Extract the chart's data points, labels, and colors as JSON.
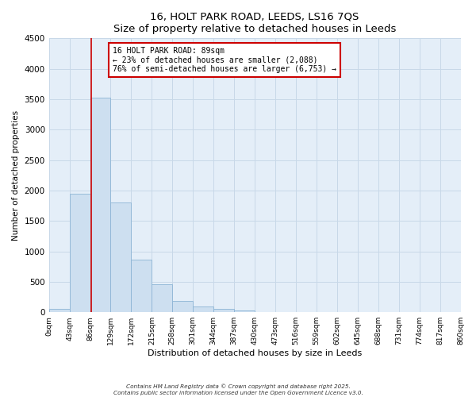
{
  "title": "16, HOLT PARK ROAD, LEEDS, LS16 7QS",
  "subtitle": "Size of property relative to detached houses in Leeds",
  "xlabel": "Distribution of detached houses by size in Leeds",
  "ylabel": "Number of detached properties",
  "bar_edges": [
    0,
    43,
    86,
    129,
    172,
    215,
    258,
    301,
    344,
    387,
    430,
    473,
    516,
    559,
    602,
    645,
    688,
    731,
    774,
    817,
    860
  ],
  "bar_heights": [
    50,
    1950,
    3530,
    1800,
    870,
    460,
    185,
    100,
    55,
    30,
    0,
    0,
    0,
    0,
    0,
    0,
    0,
    0,
    0,
    0
  ],
  "bar_color": "#cddff0",
  "bar_edge_color": "#8cb4d5",
  "property_value": 89,
  "vline_color": "#cc0000",
  "annotation_title": "16 HOLT PARK ROAD: 89sqm",
  "annotation_line1": "← 23% of detached houses are smaller (2,088)",
  "annotation_line2": "76% of semi-detached houses are larger (6,753) →",
  "annotation_box_color": "#cc0000",
  "ylim": [
    0,
    4500
  ],
  "tick_labels": [
    "0sqm",
    "43sqm",
    "86sqm",
    "129sqm",
    "172sqm",
    "215sqm",
    "258sqm",
    "301sqm",
    "344sqm",
    "387sqm",
    "430sqm",
    "473sqm",
    "516sqm",
    "559sqm",
    "602sqm",
    "645sqm",
    "688sqm",
    "731sqm",
    "774sqm",
    "817sqm",
    "860sqm"
  ],
  "footer1": "Contains HM Land Registry data © Crown copyright and database right 2025.",
  "footer2": "Contains public sector information licensed under the Open Government Licence v3.0.",
  "background_color": "#ffffff",
  "grid_color": "#c8d8e8",
  "axes_bg_color": "#e4eef8"
}
